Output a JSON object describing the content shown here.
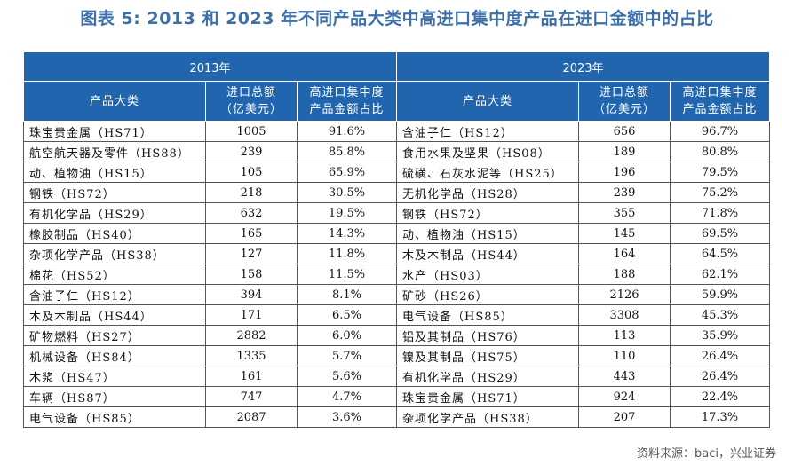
{
  "title": "图表 5:  2013 和 2023 年不同产品大类中高进口集中度产品在进口金额中的占比",
  "left_year": "2013年",
  "right_year": "2023年",
  "headers": {
    "category": "产品大类",
    "import_total_1": "进口总额",
    "import_total_2": "（亿美元）",
    "share_1": "高进口集中度",
    "share_2": "产品金额占比"
  },
  "rows_2013": [
    {
      "name": "珠宝贵金属（HS71）",
      "value": "1005",
      "share": "91.6%"
    },
    {
      "name": "航空航天器及零件（HS88）",
      "value": "239",
      "share": "85.8%"
    },
    {
      "name": "动、植物油（HS15）",
      "value": "105",
      "share": "65.9%"
    },
    {
      "name": "钢铁（HS72）",
      "value": "218",
      "share": "30.5%"
    },
    {
      "name": "有机化学品（HS29）",
      "value": "632",
      "share": "19.5%"
    },
    {
      "name": "橡胶制品（HS40）",
      "value": "165",
      "share": "14.3%"
    },
    {
      "name": "杂项化学产品（HS38）",
      "value": "127",
      "share": "11.8%"
    },
    {
      "name": "棉花（HS52）",
      "value": "158",
      "share": "11.5%"
    },
    {
      "name": "含油子仁（HS12）",
      "value": "394",
      "share": "8.1%"
    },
    {
      "name": "木及木制品（HS44）",
      "value": "171",
      "share": "6.5%"
    },
    {
      "name": "矿物燃料（HS27）",
      "value": "2882",
      "share": "6.0%"
    },
    {
      "name": "机械设备（HS84）",
      "value": "1335",
      "share": "5.7%"
    },
    {
      "name": "木浆（HS47）",
      "value": "161",
      "share": "5.6%"
    },
    {
      "name": "车辆（HS87）",
      "value": "747",
      "share": "4.7%"
    },
    {
      "name": "电气设备（HS85）",
      "value": "2087",
      "share": "3.6%"
    }
  ],
  "rows_2023": [
    {
      "name": "含油子仁（HS12）",
      "value": "656",
      "share": "96.7%"
    },
    {
      "name": "食用水果及坚果（HS08）",
      "value": "189",
      "share": "80.8%"
    },
    {
      "name": "硫磺、石灰水泥等（HS25）",
      "value": "196",
      "share": "79.5%"
    },
    {
      "name": "无机化学品（HS28）",
      "value": "239",
      "share": "75.2%"
    },
    {
      "name": "钢铁（HS72）",
      "value": "355",
      "share": "71.8%"
    },
    {
      "name": "动、植物油（HS15）",
      "value": "145",
      "share": "69.5%"
    },
    {
      "name": "木及木制品（HS44）",
      "value": "164",
      "share": "64.5%"
    },
    {
      "name": "水产（HS03）",
      "value": "188",
      "share": "62.1%"
    },
    {
      "name": "矿砂（HS26）",
      "value": "2126",
      "share": "59.9%"
    },
    {
      "name": "电气设备（HS85）",
      "value": "3308",
      "share": "45.3%"
    },
    {
      "name": "铝及其制品（HS76）",
      "value": "113",
      "share": "35.9%"
    },
    {
      "name": "镍及其制品（HS75）",
      "value": "110",
      "share": "26.4%"
    },
    {
      "name": "有机化学品（HS29）",
      "value": "443",
      "share": "26.4%"
    },
    {
      "name": "珠宝贵金属（HS71）",
      "value": "924",
      "share": "22.4%"
    },
    {
      "name": "杂项化学产品（HS38）",
      "value": "207",
      "share": "17.3%"
    }
  ],
  "source": "资料来源：baci，兴业证券"
}
